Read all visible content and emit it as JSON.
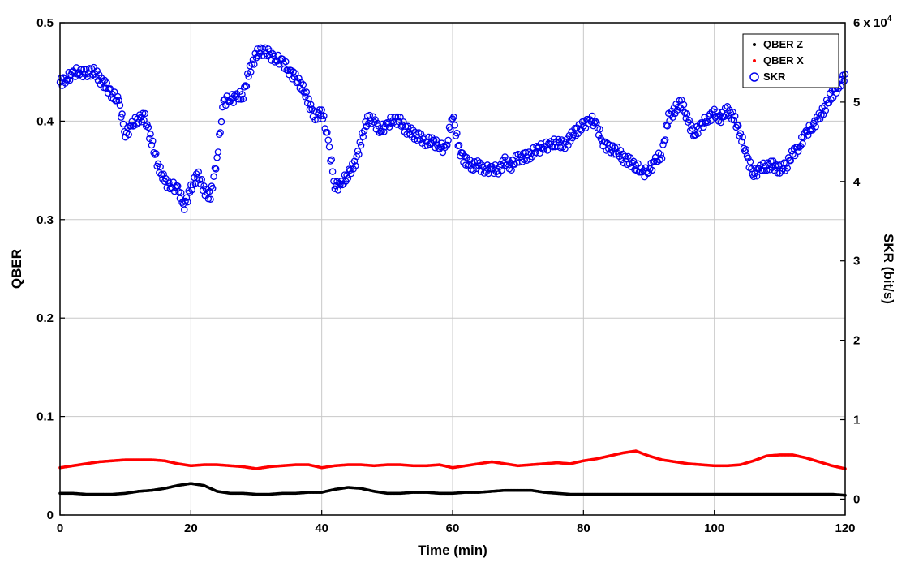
{
  "chart_data": {
    "type": "scatter",
    "xlabel": "Time (min)",
    "ylabel_left": "QBER",
    "ylabel_right": "SKR (bit/s)",
    "right_axis_multiplier": "x 10",
    "right_axis_exponent": "4",
    "xlim": [
      0,
      120
    ],
    "ylim_left": [
      0,
      0.5
    ],
    "ylim_right": [
      -0.2,
      6
    ],
    "x_ticks": [
      0,
      20,
      40,
      60,
      80,
      100,
      120
    ],
    "x_tick_labels": [
      "0",
      "20",
      "40",
      "60",
      "80",
      "100",
      "120"
    ],
    "y_left_ticks": [
      0,
      0.1,
      0.2,
      0.3,
      0.4,
      0.5
    ],
    "y_left_tick_labels": [
      "0",
      "0.1",
      "0.2",
      "0.3",
      "0.4",
      "0.5"
    ],
    "y_right_ticks": [
      0,
      1,
      2,
      3,
      4,
      5,
      6
    ],
    "y_right_tick_labels": [
      "0",
      "1",
      "2",
      "3",
      "4",
      "5",
      "6"
    ],
    "grid": true,
    "legend_position": "top-right",
    "series": [
      {
        "name": "QBER Z",
        "axis": "left",
        "marker": "dot",
        "color": "#000000",
        "x": [
          0,
          2,
          4,
          6,
          8,
          10,
          12,
          14,
          16,
          18,
          20,
          22,
          24,
          26,
          28,
          30,
          32,
          34,
          36,
          38,
          40,
          42,
          44,
          46,
          48,
          50,
          52,
          54,
          56,
          58,
          60,
          62,
          64,
          66,
          68,
          70,
          72,
          74,
          76,
          78,
          80,
          82,
          84,
          86,
          88,
          90,
          92,
          94,
          96,
          98,
          100,
          102,
          104,
          106,
          108,
          110,
          112,
          114,
          116,
          118,
          120
        ],
        "y": [
          0.022,
          0.022,
          0.021,
          0.021,
          0.021,
          0.022,
          0.024,
          0.025,
          0.027,
          0.03,
          0.032,
          0.03,
          0.024,
          0.022,
          0.022,
          0.021,
          0.021,
          0.022,
          0.022,
          0.023,
          0.023,
          0.026,
          0.028,
          0.027,
          0.024,
          0.022,
          0.022,
          0.023,
          0.023,
          0.022,
          0.022,
          0.023,
          0.023,
          0.024,
          0.025,
          0.025,
          0.025,
          0.023,
          0.022,
          0.021,
          0.021,
          0.021,
          0.021,
          0.021,
          0.021,
          0.021,
          0.021,
          0.021,
          0.021,
          0.021,
          0.021,
          0.021,
          0.021,
          0.021,
          0.021,
          0.021,
          0.021,
          0.021,
          0.021,
          0.021,
          0.02
        ]
      },
      {
        "name": "QBER X",
        "axis": "left",
        "marker": "dot",
        "color": "#ff0000",
        "x": [
          0,
          2,
          4,
          6,
          8,
          10,
          12,
          14,
          16,
          18,
          20,
          22,
          24,
          26,
          28,
          30,
          32,
          34,
          36,
          38,
          40,
          42,
          44,
          46,
          48,
          50,
          52,
          54,
          56,
          58,
          60,
          62,
          64,
          66,
          68,
          70,
          72,
          74,
          76,
          78,
          80,
          82,
          84,
          86,
          88,
          90,
          92,
          94,
          96,
          98,
          100,
          102,
          104,
          106,
          108,
          110,
          112,
          114,
          116,
          118,
          120
        ],
        "y": [
          0.048,
          0.05,
          0.052,
          0.054,
          0.055,
          0.056,
          0.056,
          0.056,
          0.055,
          0.052,
          0.05,
          0.051,
          0.051,
          0.05,
          0.049,
          0.047,
          0.049,
          0.05,
          0.051,
          0.051,
          0.048,
          0.05,
          0.051,
          0.051,
          0.05,
          0.051,
          0.051,
          0.05,
          0.05,
          0.051,
          0.048,
          0.05,
          0.052,
          0.054,
          0.052,
          0.05,
          0.051,
          0.052,
          0.053,
          0.052,
          0.055,
          0.057,
          0.06,
          0.063,
          0.065,
          0.06,
          0.056,
          0.054,
          0.052,
          0.051,
          0.05,
          0.05,
          0.051,
          0.055,
          0.06,
          0.061,
          0.061,
          0.058,
          0.054,
          0.05,
          0.047
        ]
      },
      {
        "name": "SKR",
        "axis": "right",
        "marker": "circle",
        "color": "#0000ee",
        "x": [
          0,
          1,
          2,
          3,
          4,
          5,
          6,
          7,
          8,
          9,
          10,
          11,
          12,
          13,
          14,
          15,
          16,
          17,
          18,
          19,
          20,
          21,
          22,
          23,
          24,
          25,
          26,
          27,
          28,
          29,
          30,
          31,
          32,
          33,
          34,
          35,
          36,
          37,
          38,
          39,
          40,
          41,
          42,
          43,
          44,
          45,
          46,
          47,
          48,
          49,
          50,
          51,
          52,
          53,
          54,
          55,
          56,
          57,
          58,
          59,
          60,
          61,
          62,
          63,
          64,
          65,
          66,
          67,
          68,
          69,
          70,
          71,
          72,
          73,
          74,
          75,
          76,
          77,
          78,
          79,
          80,
          81,
          82,
          83,
          84,
          85,
          86,
          87,
          88,
          89,
          90,
          91,
          92,
          93,
          94,
          95,
          96,
          97,
          98,
          99,
          100,
          101,
          102,
          103,
          104,
          105,
          106,
          107,
          108,
          109,
          110,
          111,
          112,
          113,
          114,
          115,
          116,
          117,
          118,
          119,
          120
        ],
        "y": [
          5.25,
          5.3,
          5.35,
          5.4,
          5.35,
          5.4,
          5.3,
          5.2,
          5.1,
          5.0,
          4.6,
          4.7,
          4.8,
          4.8,
          4.5,
          4.2,
          4.0,
          3.95,
          3.9,
          3.7,
          3.9,
          4.1,
          3.9,
          3.8,
          4.3,
          5.0,
          5.05,
          5.05,
          5.1,
          5.4,
          5.6,
          5.65,
          5.6,
          5.55,
          5.5,
          5.4,
          5.3,
          5.2,
          5.0,
          4.8,
          4.9,
          4.5,
          3.95,
          3.95,
          4.1,
          4.2,
          4.5,
          4.8,
          4.75,
          4.65,
          4.7,
          4.8,
          4.75,
          4.65,
          4.6,
          4.55,
          4.5,
          4.5,
          4.45,
          4.4,
          4.85,
          4.4,
          4.25,
          4.2,
          4.2,
          4.15,
          4.15,
          4.15,
          4.25,
          4.2,
          4.3,
          4.3,
          4.35,
          4.4,
          4.45,
          4.45,
          4.5,
          4.45,
          4.55,
          4.65,
          4.7,
          4.8,
          4.7,
          4.5,
          4.4,
          4.4,
          4.3,
          4.25,
          4.2,
          4.1,
          4.15,
          4.25,
          4.35,
          4.8,
          4.9,
          5.0,
          4.75,
          4.6,
          4.7,
          4.8,
          4.85,
          4.8,
          4.9,
          4.8,
          4.6,
          4.3,
          4.1,
          4.15,
          4.2,
          4.2,
          4.15,
          4.2,
          4.35,
          4.45,
          4.6,
          4.7,
          4.8,
          4.95,
          5.1,
          5.2,
          5.35
        ]
      }
    ]
  }
}
